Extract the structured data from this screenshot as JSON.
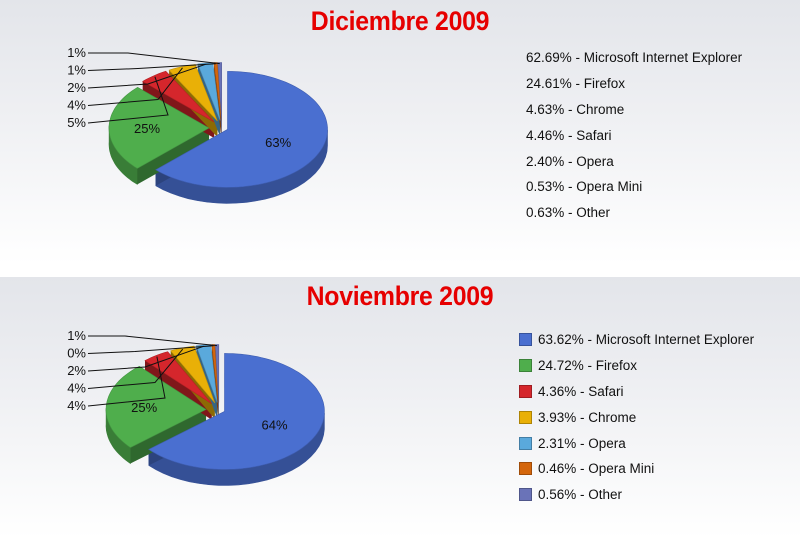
{
  "chart_data": [
    {
      "type": "pie",
      "title": "Diciembre 2009",
      "slices": [
        {
          "name": "Microsoft Internet Explorer",
          "value": 62.69,
          "legend": "62.69% - Microsoft Internet Explorer",
          "label": "63%",
          "color": "#4a6fd0"
        },
        {
          "name": "Firefox",
          "value": 24.61,
          "legend": "24.61% - Firefox",
          "label": "25%",
          "color": "#4fae4c"
        },
        {
          "name": "Chrome",
          "value": 4.63,
          "legend": "4.63% - Chrome",
          "label": "5%",
          "color": "#d5262c"
        },
        {
          "name": "Safari",
          "value": 4.46,
          "legend": "4.46% - Safari",
          "label": "4%",
          "color": "#e9b007"
        },
        {
          "name": "Opera",
          "value": 2.4,
          "legend": "2.40% - Opera",
          "label": "2%",
          "color": "#5aa9dc"
        },
        {
          "name": "Opera Mini",
          "value": 0.53,
          "legend": "0.53% - Opera Mini",
          "label": "1%",
          "color": "#d4660c"
        },
        {
          "name": "Other",
          "value": 0.63,
          "legend": "0.63% - Other",
          "label": "1%",
          "color": "#6a73b8"
        }
      ],
      "legend_swatches": false
    },
    {
      "type": "pie",
      "title": "Noviembre 2009",
      "slices": [
        {
          "name": "Microsoft Internet Explorer",
          "value": 63.62,
          "legend": "63.62% - Microsoft Internet Explorer",
          "label": "64%",
          "color": "#4a6fd0"
        },
        {
          "name": "Firefox",
          "value": 24.72,
          "legend": "24.72% - Firefox",
          "label": "25%",
          "color": "#4fae4c"
        },
        {
          "name": "Safari",
          "value": 4.36,
          "legend": "4.36% - Safari",
          "label": "4%",
          "color": "#d5262c"
        },
        {
          "name": "Chrome",
          "value": 3.93,
          "legend": "3.93% - Chrome",
          "label": "4%",
          "color": "#e9b007"
        },
        {
          "name": "Opera",
          "value": 2.31,
          "legend": "2.31% - Opera",
          "label": "2%",
          "color": "#5aa9dc"
        },
        {
          "name": "Opera Mini",
          "value": 0.46,
          "legend": "0.46% - Opera Mini",
          "label": "0%",
          "color": "#d4660c"
        },
        {
          "name": "Other",
          "value": 0.56,
          "legend": "0.56% - Other",
          "label": "1%",
          "color": "#6a73b8"
        }
      ],
      "legend_swatches": true
    }
  ]
}
